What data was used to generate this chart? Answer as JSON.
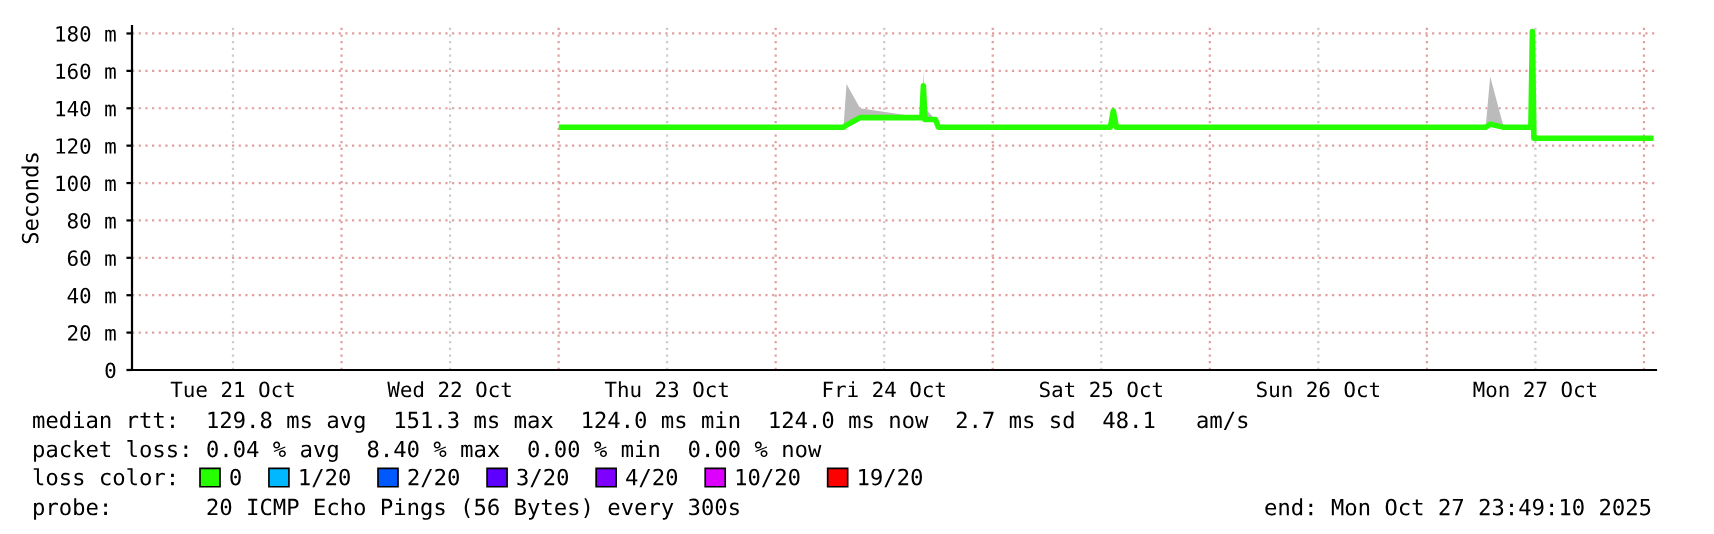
{
  "chart_data": {
    "type": "line",
    "ylabel": "Seconds",
    "xlim": [
      "2025-10-21T00:50",
      "2025-10-28T01:20"
    ],
    "ylim": [
      0,
      184
    ],
    "yticks": [
      {
        "value": 0,
        "label": "0"
      },
      {
        "value": 20,
        "label": "20 m"
      },
      {
        "value": 40,
        "label": "40 m"
      },
      {
        "value": 60,
        "label": "60 m"
      },
      {
        "value": 80,
        "label": "80 m"
      },
      {
        "value": 100,
        "label": "100 m"
      },
      {
        "value": 120,
        "label": "120 m"
      },
      {
        "value": 140,
        "label": "140 m"
      },
      {
        "value": 160,
        "label": "160 m"
      },
      {
        "value": 180,
        "label": "180 m"
      }
    ],
    "xticks": [
      {
        "value": "2025-10-21T12:00",
        "label": "Tue 21 Oct"
      },
      {
        "value": "2025-10-22T00:00",
        "label": null
      },
      {
        "value": "2025-10-22T12:00",
        "label": "Wed 22 Oct"
      },
      {
        "value": "2025-10-23T00:00",
        "label": null
      },
      {
        "value": "2025-10-23T12:00",
        "label": "Thu 23 Oct"
      },
      {
        "value": "2025-10-24T00:00",
        "label": null
      },
      {
        "value": "2025-10-24T12:00",
        "label": "Fri 24 Oct"
      },
      {
        "value": "2025-10-25T00:00",
        "label": null
      },
      {
        "value": "2025-10-25T12:00",
        "label": "Sat 25 Oct"
      },
      {
        "value": "2025-10-26T00:00",
        "label": null
      },
      {
        "value": "2025-10-26T12:00",
        "label": "Sun 26 Oct"
      },
      {
        "value": "2025-10-27T00:00",
        "label": null
      },
      {
        "value": "2025-10-27T12:00",
        "label": "Mon 27 Oct"
      },
      {
        "value": "2025-10-28T00:00",
        "label": null
      }
    ],
    "grid": true,
    "legend": "bottom",
    "legend_title": "loss color:",
    "x": [
      "2025-10-23T00:20",
      "2025-10-24T07:30",
      "2025-10-24T07:50",
      "2025-10-24T09:20",
      "2025-10-24T16:10",
      "2025-10-24T16:20",
      "2025-10-24T16:30",
      "2025-10-24T17:40",
      "2025-10-24T18:00",
      "2025-10-25T13:00",
      "2025-10-25T13:20",
      "2025-10-25T13:40",
      "2025-10-27T06:30",
      "2025-10-27T07:00",
      "2025-10-27T08:30",
      "2025-10-27T11:30",
      "2025-10-27T11:40",
      "2025-10-27T11:50",
      "2025-10-28T00:45"
    ],
    "series": [
      {
        "name": "0",
        "color": "#26ff00",
        "values": [
          129.8,
          129.8,
          131,
          135,
          135,
          152,
          134,
          134,
          129.8,
          129.8,
          138.6,
          129.8,
          129.8,
          131.5,
          129.8,
          129.8,
          181,
          124,
          124
        ],
        "lower": [
          129.8,
          129.8,
          129.8,
          135,
          135,
          135,
          134,
          134,
          129.8,
          129.8,
          129.8,
          129.8,
          129.8,
          129.8,
          129.8,
          129.8,
          129.8,
          124,
          124
        ],
        "upper": [
          129.8,
          129.8,
          153,
          140,
          135,
          160,
          140,
          134,
          129.8,
          129.8,
          140,
          129.8,
          129.8,
          157,
          129.8,
          129.8,
          181,
          124,
          124
        ]
      },
      {
        "name": "1/20",
        "color": "#00b8ff",
        "values": [
          null,
          null,
          null,
          null,
          null,
          null,
          null,
          null,
          null,
          null,
          null,
          null,
          null,
          null,
          null,
          null,
          null,
          null,
          null
        ]
      },
      {
        "name": "2/20",
        "color": "#0059ff",
        "values": [
          null,
          null,
          null,
          null,
          null,
          null,
          null,
          null,
          null,
          null,
          null,
          null,
          null,
          null,
          null,
          null,
          null,
          null,
          null
        ]
      },
      {
        "name": "3/20",
        "color": "#5e00ff",
        "values": [
          null,
          null,
          null,
          null,
          null,
          null,
          null,
          null,
          null,
          null,
          null,
          null,
          null,
          null,
          null,
          null,
          null,
          null,
          null
        ]
      },
      {
        "name": "4/20",
        "color": "#7e00ff",
        "values": [
          null,
          null,
          null,
          null,
          null,
          null,
          null,
          null,
          null,
          null,
          null,
          null,
          null,
          null,
          null,
          null,
          null,
          null,
          null
        ]
      },
      {
        "name": "10/20",
        "color": "#dd00ff",
        "values": [
          null,
          null,
          null,
          null,
          null,
          null,
          null,
          null,
          null,
          null,
          null,
          null,
          null,
          null,
          null,
          null,
          null,
          null,
          null
        ]
      },
      {
        "name": "19/20",
        "color": "#ff0000",
        "values": [
          null,
          null,
          null,
          null,
          null,
          null,
          null,
          null,
          null,
          null,
          null,
          null,
          null,
          null,
          null,
          null,
          null,
          null,
          null
        ]
      }
    ],
    "annotations": [
      "median rtt:  129.8 ms avg  151.3 ms max  124.0 ms min  124.0 ms now  2.7 ms sd  48.1   am/s",
      "packet loss: 0.04 % avg  8.40 % max  0.00 % min  0.00 % now",
      "probe:       20 ICMP Echo Pings (56 Bytes) every 300s",
      "end: Mon Oct 27 23:49:10 2025"
    ]
  }
}
